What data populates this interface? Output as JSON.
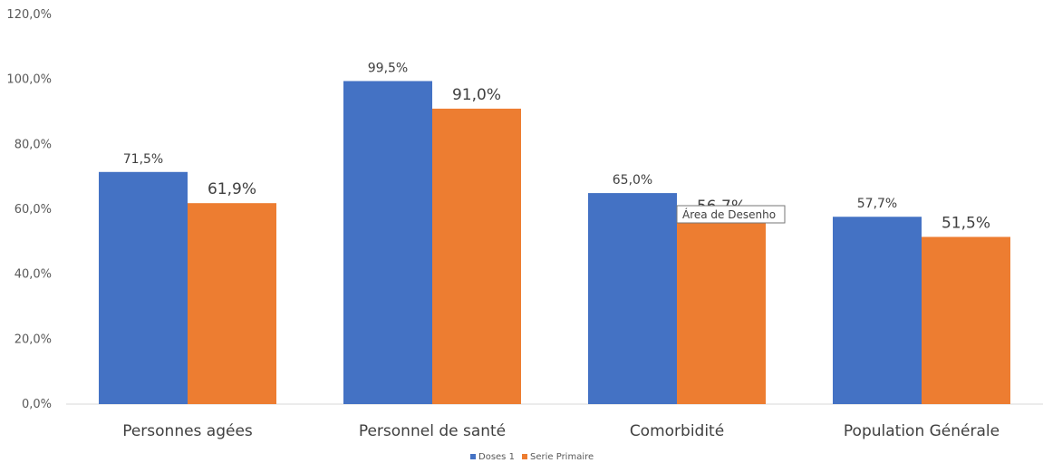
{
  "chart_data": {
    "type": "bar",
    "categories": [
      "Personnes agées",
      "Personnel de santé",
      "Comorbidité",
      "Population Générale"
    ],
    "series": [
      {
        "name": "Doses 1",
        "values": [
          71.5,
          99.5,
          65.0,
          57.7
        ],
        "labels": [
          "71,5%",
          "99,5%",
          "65,0%",
          "57,7%"
        ],
        "color": "#4472C4"
      },
      {
        "name": "Serie Primaire",
        "values": [
          61.9,
          91.0,
          56.7,
          51.5
        ],
        "labels": [
          "61,9%",
          "91,0%",
          "56,7%",
          "51,5%"
        ],
        "color": "#ED7D31"
      }
    ],
    "y_ticks": [
      "0,0%",
      "20,0%",
      "40,0%",
      "60,0%",
      "80,0%",
      "100,0%",
      "120,0%"
    ],
    "ylim": [
      0,
      120
    ],
    "grid": false,
    "legend_position": "bottom-center"
  },
  "tooltip": {
    "text": "Área de Desenho"
  }
}
